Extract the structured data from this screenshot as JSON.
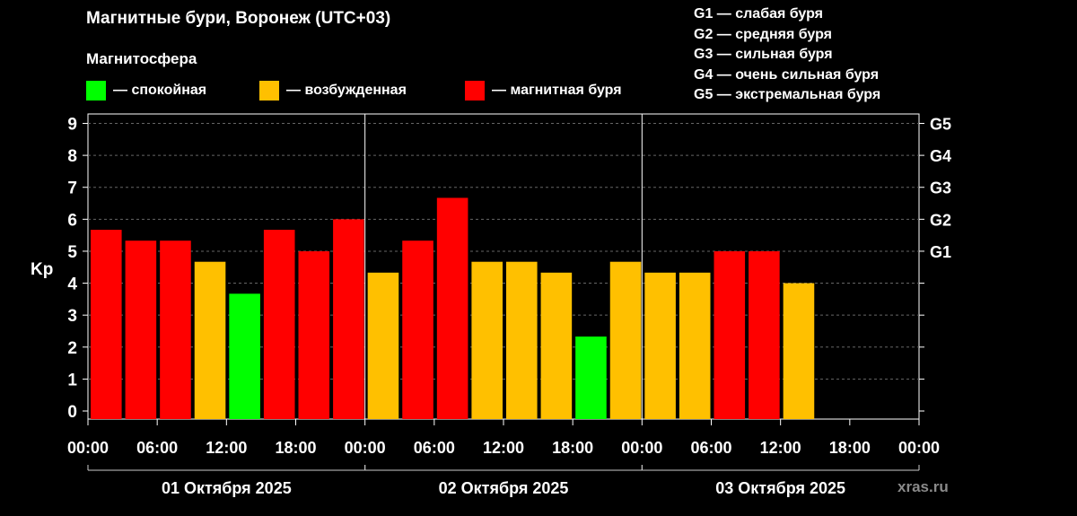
{
  "header": {
    "title": "Магнитные бури, Воронеж (UTC+03)",
    "subtitle": "Магнитосфера"
  },
  "legend": [
    {
      "label": "— спокойная",
      "color": "#00ff00"
    },
    {
      "label": "— возбужденная",
      "color": "#ffc000"
    },
    {
      "label": "— магнитная буря",
      "color": "#ff0000"
    }
  ],
  "g_scale": [
    "G1 — слабая буря",
    "G2 — средняя буря",
    "G3 — сильная буря",
    "G4 — очень сильная буря",
    "G5 — экстремальная буря"
  ],
  "watermark": "xras.ru",
  "chart_data": {
    "type": "bar",
    "ylabel": "Kp",
    "ylim": [
      0,
      9
    ],
    "y_ticks": [
      "0",
      "1",
      "2",
      "3",
      "4",
      "5",
      "6",
      "7",
      "8",
      "9"
    ],
    "right_axis_ticks": [
      {
        "value": 5,
        "label": "G1"
      },
      {
        "value": 6,
        "label": "G2"
      },
      {
        "value": 7,
        "label": "G3"
      },
      {
        "value": 8,
        "label": "G4"
      },
      {
        "value": 9,
        "label": "G5"
      }
    ],
    "x_tick_labels": [
      "00:00",
      "06:00",
      "12:00",
      "18:00",
      "00:00",
      "06:00",
      "12:00",
      "18:00",
      "00:00",
      "06:00",
      "12:00",
      "18:00",
      "00:00"
    ],
    "days": [
      "01 Октября 2025",
      "02 Октября 2025",
      "03 Октября 2025"
    ],
    "colors": {
      "quiet": "#00ff00",
      "active": "#ffc000",
      "storm": "#ff0000"
    },
    "values": [
      5.67,
      5.33,
      5.33,
      4.67,
      3.67,
      5.67,
      5.0,
      6.0,
      4.33,
      5.33,
      6.67,
      4.67,
      4.67,
      4.33,
      2.33,
      4.67,
      4.33,
      4.33,
      5.0,
      5.0,
      4.0
    ],
    "levels": [
      "storm",
      "storm",
      "storm",
      "active",
      "quiet",
      "storm",
      "storm",
      "storm",
      "active",
      "storm",
      "storm",
      "active",
      "active",
      "active",
      "quiet",
      "active",
      "active",
      "active",
      "storm",
      "storm",
      "active"
    ],
    "grid": true,
    "legend_position": "top-left"
  }
}
